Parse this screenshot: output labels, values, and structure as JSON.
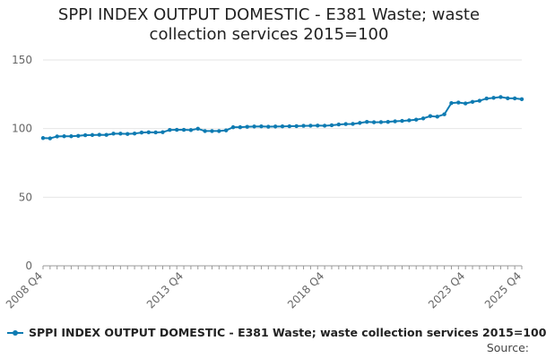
{
  "title_lines": [
    "SPPI INDEX OUTPUT DOMESTIC - E381 Waste; waste",
    "collection services 2015=100"
  ],
  "legend": {
    "label": "SPPI INDEX OUTPUT DOMESTIC - E381 Waste; waste collection services 2015=100"
  },
  "source": "Source:",
  "colors": {
    "series": "#0e7bb2",
    "grid": "#e6e6e6",
    "axis": "#999999",
    "text": "#666666"
  },
  "chart_data": {
    "type": "line",
    "title": "SPPI INDEX OUTPUT DOMESTIC - E381 Waste; waste collection services 2015=100",
    "xlabel": "",
    "ylabel": "",
    "ylim": [
      0,
      150
    ],
    "yticks": [
      0,
      50,
      100,
      150
    ],
    "xtick_labels": [
      "2008 Q4",
      "2013 Q4",
      "2018 Q4",
      "2023 Q4",
      "2025 Q4"
    ],
    "grid": true,
    "legend_position": "bottom",
    "series": [
      {
        "name": "SPPI INDEX OUTPUT DOMESTIC - E381 Waste; waste collection services 2015=100",
        "x": [
          "2008 Q4",
          "2009 Q1",
          "2009 Q2",
          "2009 Q3",
          "2009 Q4",
          "2010 Q1",
          "2010 Q2",
          "2010 Q3",
          "2010 Q4",
          "2011 Q1",
          "2011 Q2",
          "2011 Q3",
          "2011 Q4",
          "2012 Q1",
          "2012 Q2",
          "2012 Q3",
          "2012 Q4",
          "2013 Q1",
          "2013 Q2",
          "2013 Q3",
          "2013 Q4",
          "2014 Q1",
          "2014 Q2",
          "2014 Q3",
          "2014 Q4",
          "2015 Q1",
          "2015 Q2",
          "2015 Q3",
          "2015 Q4",
          "2016 Q1",
          "2016 Q2",
          "2016 Q3",
          "2016 Q4",
          "2017 Q1",
          "2017 Q2",
          "2017 Q3",
          "2017 Q4",
          "2018 Q1",
          "2018 Q2",
          "2018 Q3",
          "2018 Q4",
          "2019 Q1",
          "2019 Q2",
          "2019 Q3",
          "2019 Q4",
          "2020 Q1",
          "2020 Q2",
          "2020 Q3",
          "2020 Q4",
          "2021 Q1",
          "2021 Q2",
          "2021 Q3",
          "2021 Q4",
          "2022 Q1",
          "2022 Q2",
          "2022 Q3",
          "2022 Q4",
          "2023 Q1",
          "2023 Q2",
          "2023 Q3",
          "2023 Q4",
          "2024 Q1",
          "2024 Q2",
          "2024 Q3",
          "2024 Q4",
          "2025 Q1",
          "2025 Q2",
          "2025 Q3",
          "2025 Q4"
        ],
        "values": [
          93.1,
          92.9,
          94.3,
          94.4,
          94.4,
          94.7,
          95.2,
          95.3,
          95.5,
          95.4,
          96.3,
          96.3,
          96.1,
          96.4,
          97.1,
          97.3,
          97.2,
          97.4,
          99.0,
          99.1,
          99.1,
          98.9,
          99.9,
          98.2,
          98.2,
          98.2,
          98.7,
          101.0,
          101.0,
          101.3,
          101.5,
          101.6,
          101.4,
          101.5,
          101.6,
          101.7,
          101.8,
          102.0,
          102.1,
          102.2,
          102.1,
          102.4,
          103.0,
          103.3,
          103.4,
          104.1,
          104.9,
          104.6,
          104.7,
          104.9,
          105.3,
          105.6,
          106.0,
          106.5,
          107.4,
          109.1,
          108.7,
          110.4,
          118.6,
          119.0,
          118.3,
          119.5,
          120.3,
          121.9,
          122.4,
          123.0,
          122.1,
          122.0,
          121.4
        ]
      }
    ]
  }
}
